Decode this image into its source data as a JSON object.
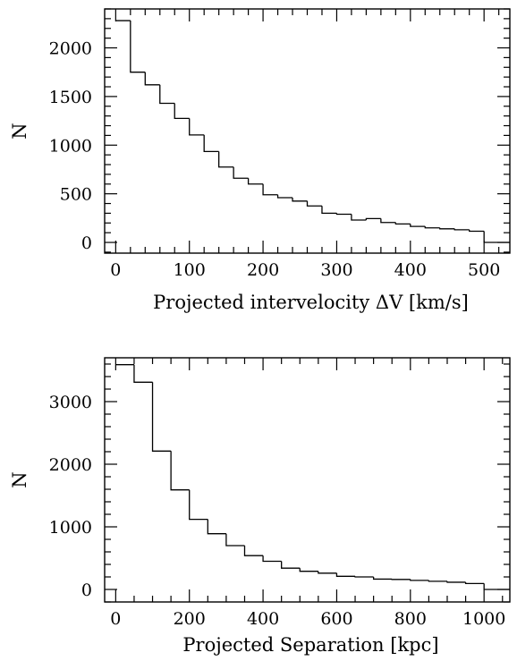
{
  "chart_data": [
    {
      "type": "bar",
      "title": "",
      "xlabel": "Projected intervelocity ΔV [km/s]",
      "ylabel": "N",
      "xlim": [
        -15,
        535
      ],
      "ylim": [
        -110,
        2400
      ],
      "x_major_ticks": [
        0,
        100,
        200,
        300,
        400,
        500
      ],
      "x_minor_step": 20,
      "y_major_ticks": [
        0,
        500,
        1000,
        1500,
        2000
      ],
      "y_minor_step": 100,
      "bin_edges": [
        0,
        20,
        40,
        60,
        80,
        100,
        120,
        140,
        160,
        180,
        200,
        220,
        240,
        260,
        280,
        300,
        320,
        340,
        360,
        380,
        400,
        420,
        440,
        460,
        480,
        500,
        535
      ],
      "values": [
        2280,
        1750,
        1620,
        1430,
        1275,
        1105,
        935,
        775,
        660,
        600,
        490,
        460,
        425,
        375,
        300,
        290,
        230,
        245,
        205,
        190,
        165,
        150,
        140,
        130,
        115,
        0
      ]
    },
    {
      "type": "bar",
      "title": "",
      "xlabel": "Projected Separation [kpc]",
      "ylabel": "N",
      "xlim": [
        -30,
        1070
      ],
      "ylim": [
        -200,
        3700
      ],
      "x_major_ticks": [
        0,
        200,
        400,
        600,
        800,
        1000
      ],
      "x_minor_step": 50,
      "y_major_ticks": [
        0,
        1000,
        2000,
        3000
      ],
      "y_minor_step": 200,
      "bin_edges": [
        0,
        50,
        100,
        150,
        200,
        250,
        300,
        350,
        400,
        450,
        500,
        550,
        600,
        650,
        700,
        750,
        800,
        850,
        900,
        950,
        1000,
        1070
      ],
      "values": [
        3590,
        3310,
        2210,
        1590,
        1120,
        890,
        700,
        540,
        450,
        340,
        290,
        260,
        210,
        200,
        165,
        160,
        145,
        130,
        115,
        95,
        0
      ]
    }
  ]
}
